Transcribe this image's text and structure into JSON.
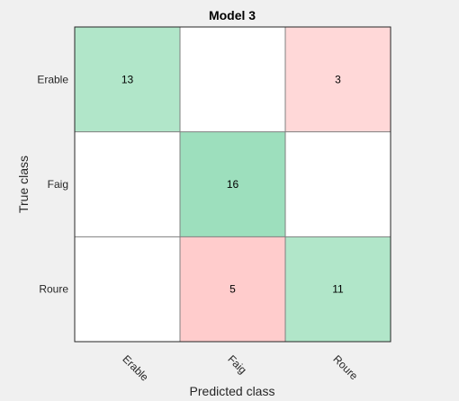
{
  "chart_data": {
    "type": "heatmap",
    "title": "Model 3",
    "xlabel": "Predicted class",
    "ylabel": "True class",
    "classes": [
      "Erable",
      "Faig",
      "Roure"
    ],
    "matrix": [
      [
        13,
        0,
        3
      ],
      [
        0,
        16,
        0
      ],
      [
        0,
        5,
        11
      ]
    ],
    "colors": {
      "correct_high": "#9ddfbd",
      "correct_low": "#b1e6c9",
      "error_low": "#ffd8d8",
      "error_high": "#ffcccc",
      "empty": "#ffffff",
      "grid": "#7f7f7f",
      "frame": "#262626",
      "background": "#f0f0f0"
    }
  }
}
